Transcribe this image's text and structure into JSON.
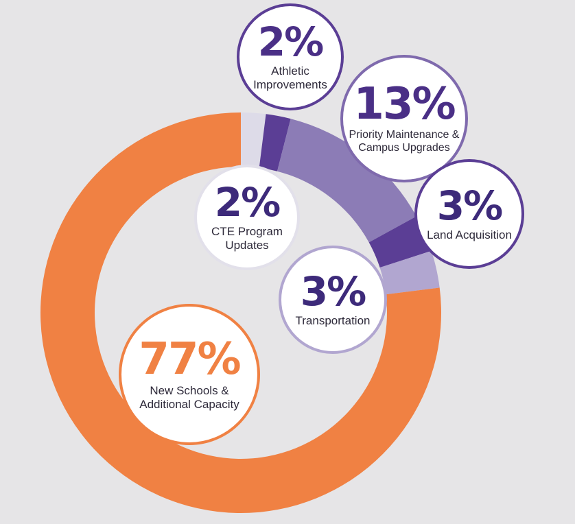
{
  "chart_data": {
    "type": "pie",
    "style": "donut",
    "grid": false,
    "slices": [
      {
        "label": "CTE Program Updates",
        "value": 2,
        "display": "2%",
        "color": "#dddbe8"
      },
      {
        "label": "Athletic Improvements",
        "value": 2,
        "display": "2%",
        "color": "#5b3e95"
      },
      {
        "label": "Priority Maintenance & Campus Upgrades",
        "value": 13,
        "display": "13%",
        "color": "#8c7cb6"
      },
      {
        "label": "Land Acquisition",
        "value": 3,
        "display": "3%",
        "color": "#5b3e95"
      },
      {
        "label": "Transportation",
        "value": 3,
        "display": "3%",
        "color": "#b1a6d0"
      },
      {
        "label": "New Schools & Additional Capacity",
        "value": 77,
        "display": "77%",
        "color": "#f08143"
      }
    ]
  },
  "labels": {
    "athletic": {
      "pct": "2%",
      "text_line1": "Athletic",
      "text_line2": "Improvements"
    },
    "priority": {
      "pct": "13%",
      "text_line1": "Priority Maintenance &",
      "text_line2": "Campus Upgrades"
    },
    "cte": {
      "pct": "2%",
      "text_line1": "CTE Program",
      "text_line2": "Updates"
    },
    "land": {
      "pct": "3%",
      "text_line1": "Land Acquisition"
    },
    "transportation": {
      "pct": "3%",
      "text_line1": "Transportation"
    },
    "new_schools": {
      "pct": "77%",
      "text_line1": "New Schools &",
      "text_line2": "Additional Capacity"
    }
  },
  "colors": {
    "background": "#e6e5e7",
    "purple_dark": "#4a2f86",
    "purple_text": "#3d2a7a",
    "orange": "#f08143"
  }
}
